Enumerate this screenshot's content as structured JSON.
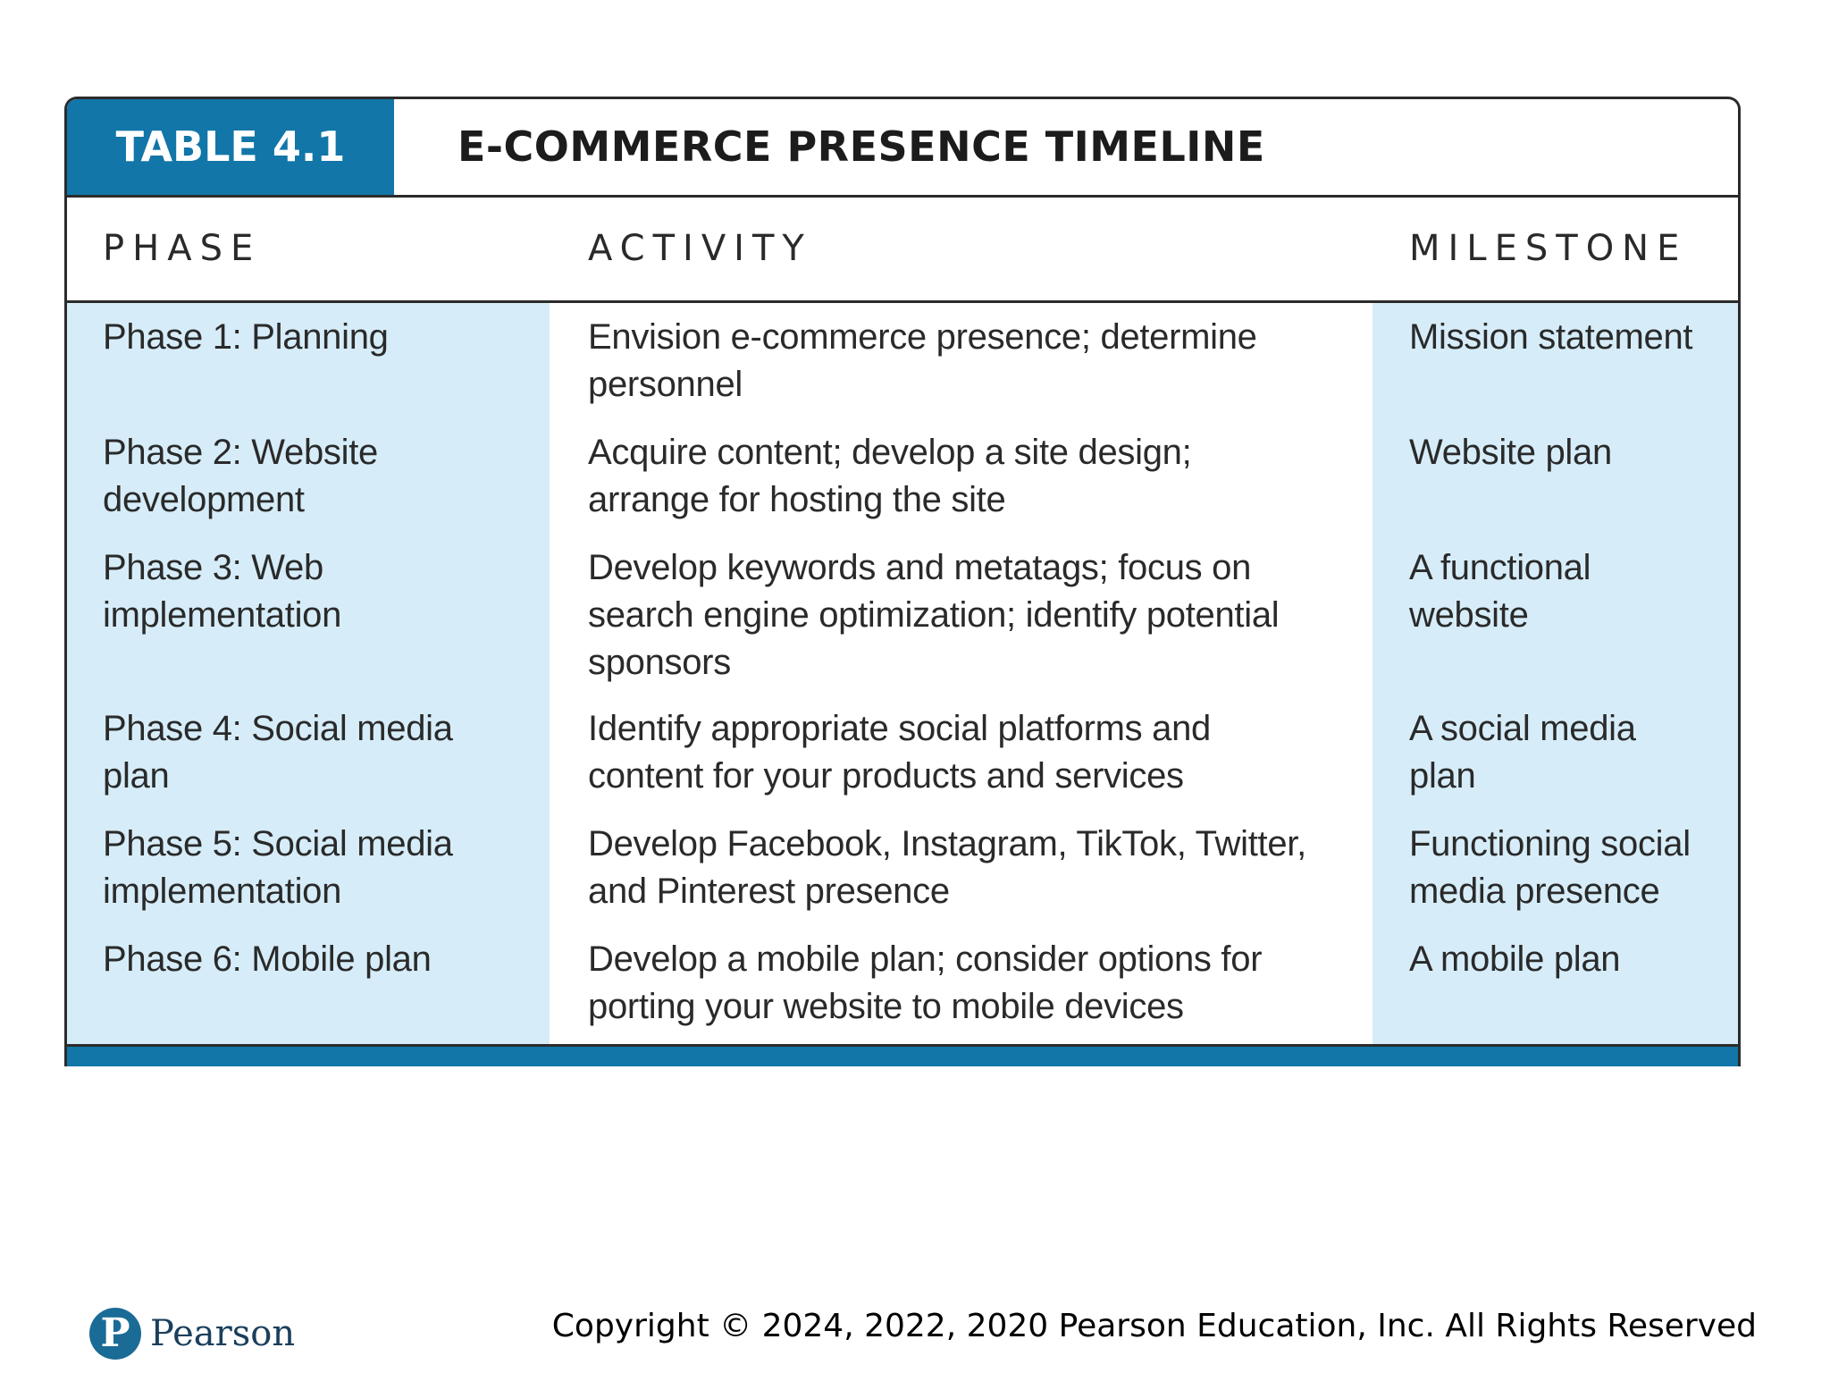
{
  "table": {
    "label": "TABLE 4.1",
    "title": "E-COMMERCE PRESENCE TIMELINE",
    "headers": [
      "PHASE",
      "ACTIVITY",
      "MILESTONE"
    ],
    "rows": [
      {
        "phase": [
          "Phase 1: Planning"
        ],
        "activity": [
          "Envision e-commerce presence; determine",
          "personnel"
        ],
        "milestone": [
          "Mission statement"
        ]
      },
      {
        "phase": [
          "Phase 2: Website",
          "development"
        ],
        "activity": [
          "Acquire content; develop a site design;",
          "arrange for hosting the site"
        ],
        "milestone": [
          "Website plan"
        ]
      },
      {
        "phase": [
          "Phase 3: Web",
          "implementation"
        ],
        "activity": [
          "Develop keywords and metatags; focus on",
          "search engine optimization; identify potential",
          "sponsors"
        ],
        "milestone": [
          "A functional",
          "website"
        ]
      },
      {
        "phase": [
          "Phase 4: Social media",
          "plan"
        ],
        "activity": [
          "Identify appropriate social platforms and",
          "content for your products and services"
        ],
        "milestone": [
          "A social media",
          "plan"
        ]
      },
      {
        "phase": [
          "Phase 5: Social media",
          "implementation"
        ],
        "activity": [
          "Develop Facebook, Instagram, TikTok, Twitter,",
          "and Pinterest presence"
        ],
        "milestone": [
          "Functioning social",
          "media presence"
        ]
      },
      {
        "phase": [
          "Phase 6: Mobile plan"
        ],
        "activity": [
          "Develop a mobile plan; consider options for",
          "porting your website to mobile devices"
        ],
        "milestone": [
          "A mobile plan"
        ]
      }
    ]
  },
  "footer": {
    "logo_letter": "P",
    "logo_word": "Pearson",
    "copyright": "Copyright © 2024, 2022, 2020 Pearson Education, Inc. All Rights Reserved"
  },
  "colors": {
    "accent_blue": "#1276a8",
    "column_tint": "#d6edf9"
  }
}
